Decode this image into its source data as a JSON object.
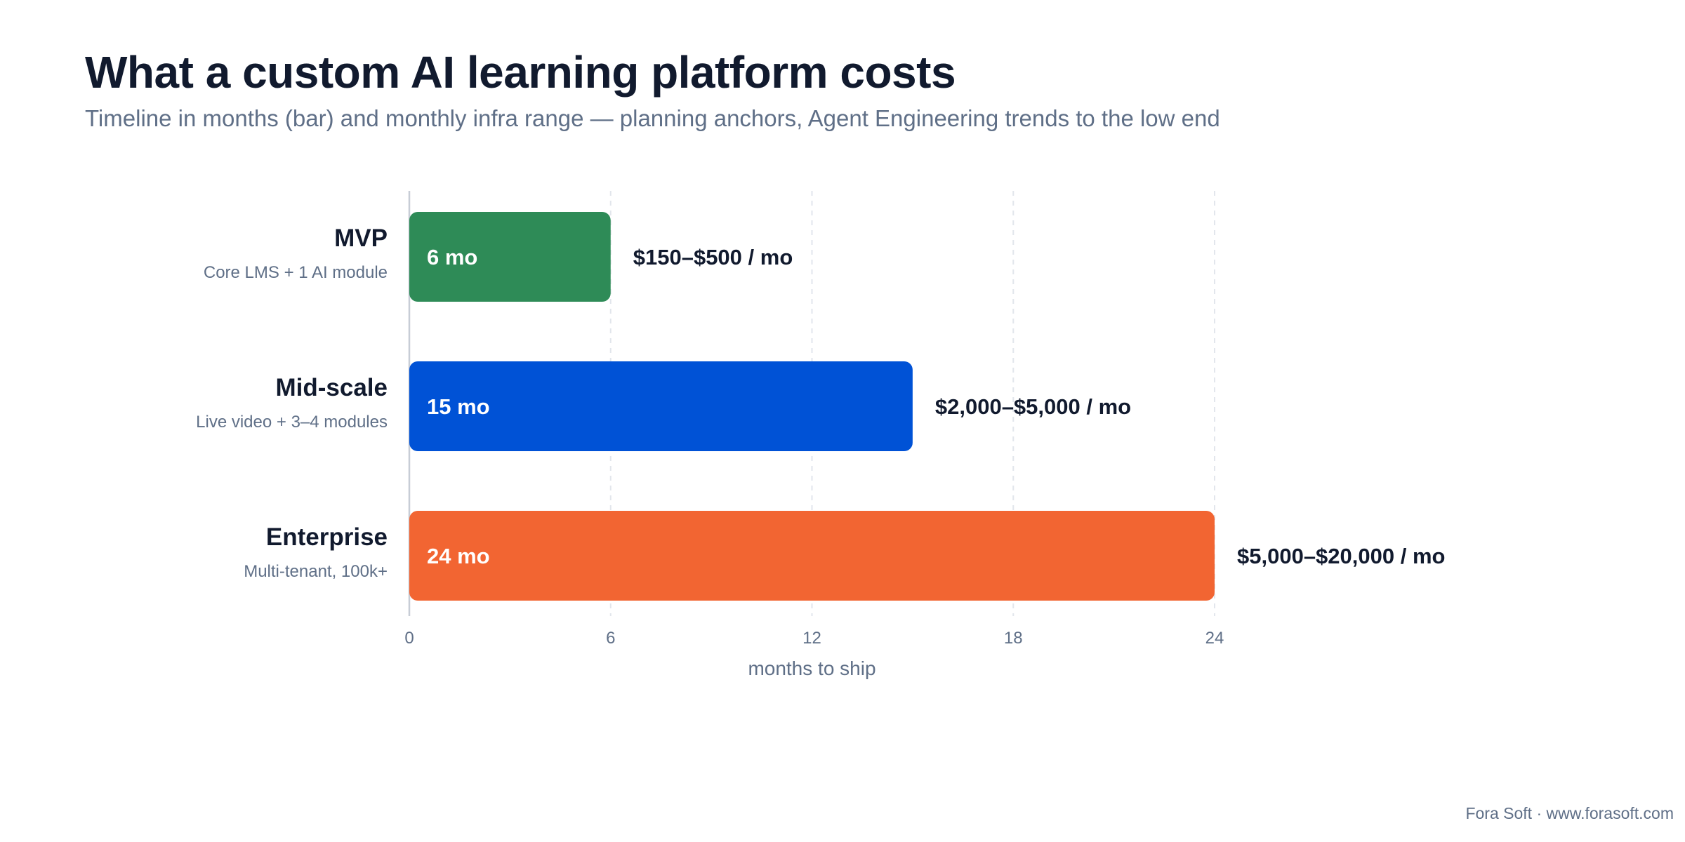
{
  "chart_data": {
    "type": "bar",
    "orientation": "horizontal",
    "title": "What a custom AI learning platform costs",
    "subtitle": "Timeline in months (bar) and monthly infra range — planning anchors, Agent Engineering trends to the low end",
    "categories": [
      {
        "name": "MVP",
        "desc": "Core LMS + 1 AI module",
        "value": 6,
        "bar_label": "6 mo",
        "cost_label": "$150–$500 / mo",
        "color": "#2e8b57"
      },
      {
        "name": "Mid-scale",
        "desc": "Live video + 3–4 modules",
        "value": 15,
        "bar_label": "15 mo",
        "cost_label": "$2,000–$5,000 / mo",
        "color": "#0052d6"
      },
      {
        "name": "Enterprise",
        "desc": "Multi-tenant, 100k+",
        "value": 24,
        "bar_label": "24 mo",
        "cost_label": "$5,000–$20,000 / mo",
        "color": "#f26532"
      }
    ],
    "xlabel": "months to ship",
    "xlim": [
      0,
      24
    ],
    "xticks": [
      "0",
      "6",
      "12",
      "18",
      "24"
    ],
    "grid": true
  },
  "footer": "Fora Soft · www.forasoft.com"
}
